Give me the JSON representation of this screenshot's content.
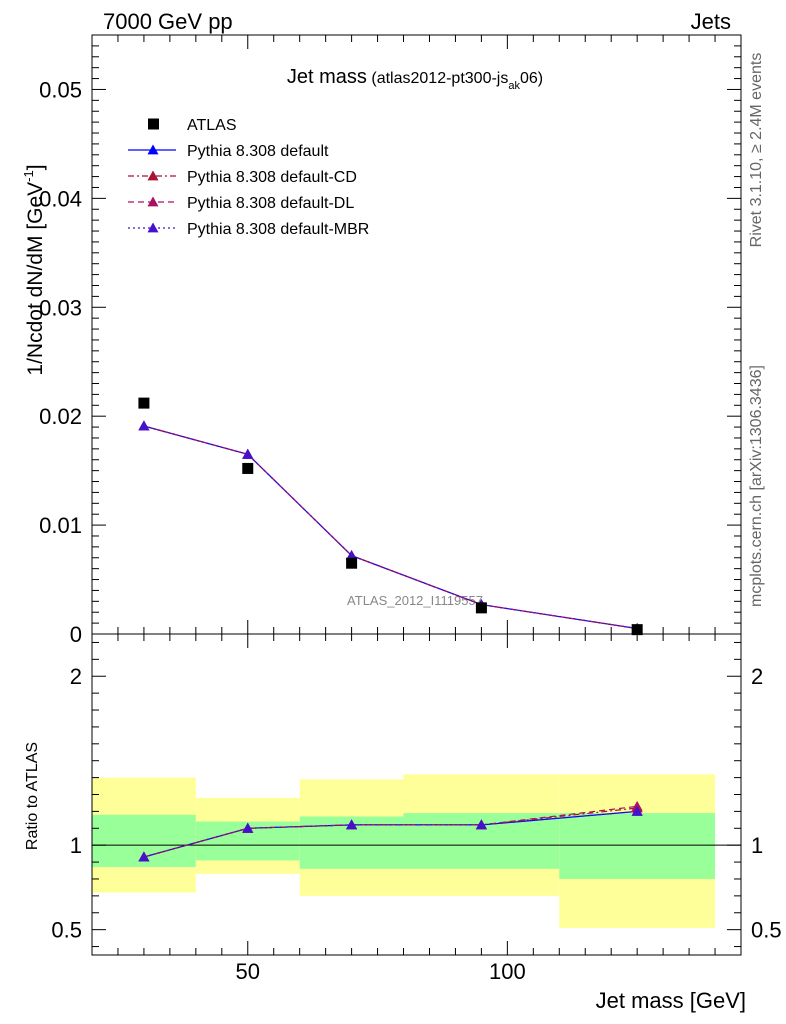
{
  "header": {
    "left": "7000 GeV pp",
    "right": "Jets"
  },
  "plot": {
    "title_main": "Jet mass",
    "title_sub_pre": "(atlas2012-pt300-js",
    "title_sub_sub": "ak",
    "title_sub_post": "06)",
    "ylabel_main": "1/Ncdot dN/dM [GeV",
    "ylabel_sup": "-1",
    "ylabel_close": "]",
    "ratio_ylabel": "Ratio to ATLAS",
    "xlabel": "Jet mass [GeV]",
    "watermark": "ATLAS_2012_I1119557"
  },
  "side_labels": {
    "top": "Rivet 3.1.10, ≥ 2.4M events",
    "bottom": "mcplots.cern.ch [arXiv:1306.3436]"
  },
  "legend": [
    {
      "label": "ATLAS",
      "color": "#000000",
      "marker": "square",
      "style": "none"
    },
    {
      "label": "Pythia 8.308 default",
      "color": "#0000ff",
      "marker": "triangle",
      "style": "solid"
    },
    {
      "label": "Pythia 8.308 default-CD",
      "color": "#aa1133",
      "marker": "triangle",
      "style": "dashdot"
    },
    {
      "label": "Pythia 8.308 default-DL",
      "color": "#aa1166",
      "marker": "triangle",
      "style": "dashed"
    },
    {
      "label": "Pythia 8.308 default-MBR",
      "color": "#4411cc",
      "marker": "triangle",
      "style": "dotted"
    }
  ],
  "chart_data": {
    "type": "line",
    "xlabel": "Jet mass [GeV]",
    "ylabel": "1/Ncdot dN/dM [GeV^-1]",
    "xlim": [
      20,
      145
    ],
    "main_ylim": [
      0,
      0.055
    ],
    "main_yticks": [
      0,
      0.01,
      0.02,
      0.03,
      0.04,
      0.05
    ],
    "main_ytick_labels": [
      "0",
      "0.01",
      "0.02",
      "0.03",
      "0.04",
      "0.05"
    ],
    "ratio_ylim": [
      0.35,
      2.25
    ],
    "ratio_yticks": [
      0.5,
      1,
      2
    ],
    "ratio_ytick_labels": [
      "0.5",
      "1",
      "2"
    ],
    "xticks": [
      50,
      100
    ],
    "xtick_labels": [
      "50",
      "100"
    ],
    "bins": [
      [
        20,
        40
      ],
      [
        40,
        60
      ],
      [
        60,
        80
      ],
      [
        80,
        110
      ],
      [
        110,
        140
      ]
    ],
    "x": [
      30,
      50,
      70,
      95,
      125
    ],
    "data": {
      "name": "ATLAS",
      "values": [
        0.0212,
        0.0152,
        0.0065,
        0.0024,
        0.0004
      ]
    },
    "series": [
      {
        "name": "Pythia 8.308 default",
        "values": [
          0.0191,
          0.0165,
          0.0072,
          0.0027,
          0.0005
        ],
        "ratio": [
          0.93,
          1.1,
          1.12,
          1.12,
          1.2
        ]
      },
      {
        "name": "Pythia 8.308 default-CD",
        "values": [
          0.0191,
          0.0165,
          0.0072,
          0.0027,
          0.0005
        ],
        "ratio": [
          0.93,
          1.1,
          1.12,
          1.12,
          1.22
        ]
      },
      {
        "name": "Pythia 8.308 default-DL",
        "values": [
          0.0191,
          0.0165,
          0.0072,
          0.0027,
          0.0005
        ],
        "ratio": [
          0.93,
          1.1,
          1.12,
          1.12,
          1.23
        ]
      },
      {
        "name": "Pythia 8.308 default-MBR",
        "values": [
          0.0191,
          0.0165,
          0.0072,
          0.0027,
          0.0005
        ],
        "ratio": [
          0.93,
          1.1,
          1.12,
          1.12,
          1.2
        ]
      }
    ],
    "uncertainty_bands": {
      "yellow": [
        [
          0.72,
          1.4
        ],
        [
          0.83,
          1.28
        ],
        [
          0.7,
          1.39
        ],
        [
          0.7,
          1.42
        ],
        [
          0.51,
          1.42
        ]
      ],
      "green": [
        [
          0.87,
          1.18
        ],
        [
          0.91,
          1.14
        ],
        [
          0.86,
          1.17
        ],
        [
          0.86,
          1.19
        ],
        [
          0.8,
          1.19
        ]
      ]
    },
    "grid": false,
    "legend_position": "top-left"
  }
}
